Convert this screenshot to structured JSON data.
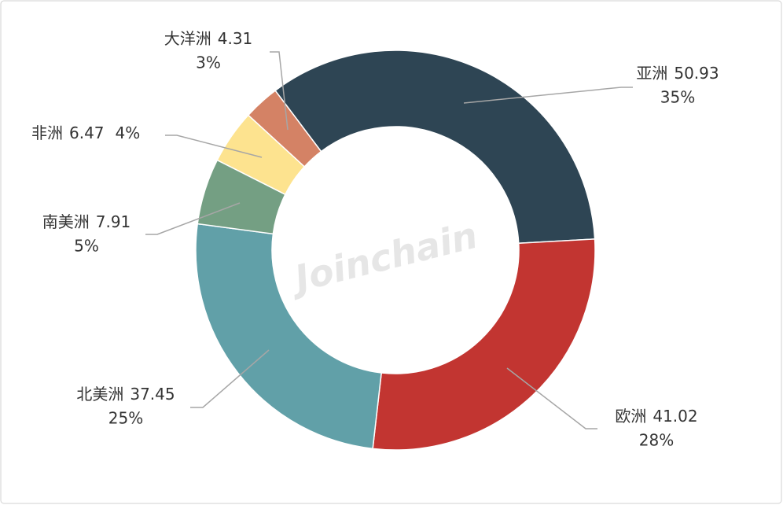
{
  "chart_data": {
    "type": "donut",
    "categories": [
      "亚洲",
      "欧洲",
      "北美洲",
      "南美洲",
      "非洲",
      "大洋洲"
    ],
    "values": [
      50.93,
      41.02,
      37.45,
      7.91,
      6.47,
      4.31
    ],
    "percent_labels": [
      "35%",
      "28%",
      "25%",
      "5%",
      "4%",
      "3%"
    ],
    "colors": [
      "#2e4554",
      "#c23531",
      "#61a0a8",
      "#749f83",
      "#fde38f",
      "#d48265"
    ],
    "watermark": "Joinchain"
  }
}
